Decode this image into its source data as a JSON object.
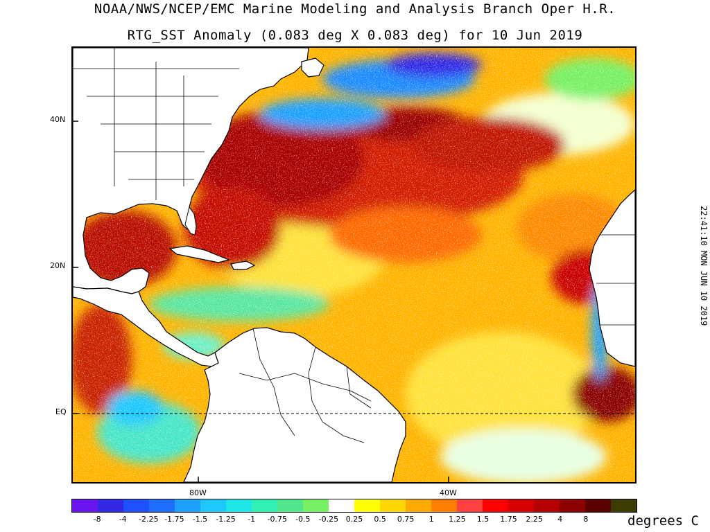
{
  "header": {
    "title_line1": "NOAA/NWS/NCEP/EMC Marine Modeling and Analysis Branch Oper H.R.",
    "title_line2": "RTG_SST Anomaly (0.083 deg X 0.083 deg) for 10 Jun 2019"
  },
  "axes": {
    "lat_labels": [
      "40N",
      "20N",
      "EQ"
    ],
    "lon_labels": [
      "80W",
      "40W"
    ]
  },
  "colorbar": {
    "labels": [
      "-8",
      "-4",
      "-2.25",
      "-1.75",
      "-1.5",
      "-1.25",
      "-1",
      "-0.75",
      "-0.5",
      "-0.25",
      "0.25",
      "0.5",
      "0.75",
      "1",
      "1.25",
      "1.5",
      "1.75",
      "2.25",
      "4",
      "8"
    ],
    "colors": [
      "#6a14f0",
      "#3228e6",
      "#1e50ff",
      "#1e6eff",
      "#1ea0ff",
      "#1ec8ff",
      "#1ee6e6",
      "#32f0b4",
      "#50e68c",
      "#78f064",
      "#ffffff",
      "#ffff00",
      "#ffd700",
      "#ffaa00",
      "#ff7f00",
      "#ff4040",
      "#ff0000",
      "#d70000",
      "#b40000",
      "#8c0000",
      "#5a0000",
      "#3c3c00"
    ],
    "units": "degrees C"
  },
  "timestamp": "22:41:10  MON JUN 10 2019"
}
